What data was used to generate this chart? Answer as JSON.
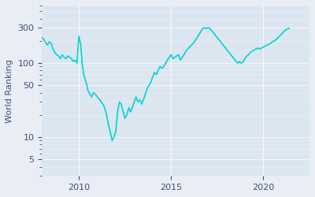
{
  "ylabel": "World Ranking",
  "line_color": "#00d4d4",
  "background_color": "#e8eef4",
  "axes_facecolor": "#dce6f0",
  "yticks": [
    5,
    10,
    50,
    100,
    300
  ],
  "xtick_years": [
    2010,
    2015,
    2020
  ],
  "xlim_start": 2008.0,
  "xlim_end": 2022.5,
  "ylim": [
    3,
    600
  ],
  "data_points": [
    [
      2008.0,
      220
    ],
    [
      2008.1,
      210
    ],
    [
      2008.2,
      190
    ],
    [
      2008.3,
      175
    ],
    [
      2008.4,
      195
    ],
    [
      2008.5,
      185
    ],
    [
      2008.6,
      155
    ],
    [
      2008.7,
      140
    ],
    [
      2008.8,
      130
    ],
    [
      2008.9,
      125
    ],
    [
      2009.0,
      115
    ],
    [
      2009.1,
      130
    ],
    [
      2009.2,
      120
    ],
    [
      2009.3,
      115
    ],
    [
      2009.4,
      125
    ],
    [
      2009.5,
      120
    ],
    [
      2009.6,
      115
    ],
    [
      2009.7,
      105
    ],
    [
      2009.8,
      110
    ],
    [
      2009.9,
      100
    ],
    [
      2010.0,
      230
    ],
    [
      2010.1,
      180
    ],
    [
      2010.2,
      90
    ],
    [
      2010.3,
      65
    ],
    [
      2010.4,
      55
    ],
    [
      2010.5,
      42
    ],
    [
      2010.6,
      38
    ],
    [
      2010.7,
      35
    ],
    [
      2010.8,
      40
    ],
    [
      2010.9,
      38
    ],
    [
      2011.0,
      35
    ],
    [
      2011.1,
      33
    ],
    [
      2011.2,
      30
    ],
    [
      2011.3,
      28
    ],
    [
      2011.4,
      25
    ],
    [
      2011.5,
      20
    ],
    [
      2011.6,
      15
    ],
    [
      2011.7,
      12
    ],
    [
      2011.8,
      9
    ],
    [
      2011.9,
      10
    ],
    [
      2012.0,
      12
    ],
    [
      2012.1,
      22
    ],
    [
      2012.2,
      30
    ],
    [
      2012.3,
      28
    ],
    [
      2012.4,
      22
    ],
    [
      2012.5,
      18
    ],
    [
      2012.6,
      20
    ],
    [
      2012.7,
      25
    ],
    [
      2012.8,
      22
    ],
    [
      2012.9,
      25
    ],
    [
      2013.0,
      30
    ],
    [
      2013.1,
      35
    ],
    [
      2013.2,
      30
    ],
    [
      2013.3,
      32
    ],
    [
      2013.4,
      28
    ],
    [
      2013.5,
      32
    ],
    [
      2013.6,
      38
    ],
    [
      2013.7,
      45
    ],
    [
      2013.8,
      50
    ],
    [
      2013.9,
      55
    ],
    [
      2014.0,
      65
    ],
    [
      2014.1,
      75
    ],
    [
      2014.2,
      70
    ],
    [
      2014.3,
      80
    ],
    [
      2014.4,
      90
    ],
    [
      2014.5,
      85
    ],
    [
      2014.6,
      90
    ],
    [
      2014.7,
      100
    ],
    [
      2014.8,
      110
    ],
    [
      2014.9,
      120
    ],
    [
      2015.0,
      130
    ],
    [
      2015.1,
      115
    ],
    [
      2015.2,
      120
    ],
    [
      2015.3,
      125
    ],
    [
      2015.4,
      130
    ],
    [
      2015.5,
      110
    ],
    [
      2015.6,
      120
    ],
    [
      2015.7,
      130
    ],
    [
      2015.8,
      145
    ],
    [
      2015.9,
      155
    ],
    [
      2016.0,
      165
    ],
    [
      2016.1,
      175
    ],
    [
      2016.2,
      185
    ],
    [
      2016.3,
      200
    ],
    [
      2016.4,
      220
    ],
    [
      2016.5,
      240
    ],
    [
      2016.6,
      265
    ],
    [
      2016.7,
      290
    ],
    [
      2016.8,
      300
    ],
    [
      2016.9,
      295
    ],
    [
      2017.0,
      300
    ],
    [
      2017.1,
      295
    ],
    [
      2018.6,
      100
    ],
    [
      2018.7,
      105
    ],
    [
      2018.8,
      100
    ],
    [
      2018.9,
      105
    ],
    [
      2019.0,
      115
    ],
    [
      2019.1,
      125
    ],
    [
      2019.2,
      130
    ],
    [
      2019.3,
      140
    ],
    [
      2019.4,
      145
    ],
    [
      2019.5,
      150
    ],
    [
      2019.6,
      155
    ],
    [
      2019.7,
      160
    ],
    [
      2019.8,
      155
    ],
    [
      2019.9,
      160
    ],
    [
      2020.0,
      165
    ],
    [
      2020.1,
      170
    ],
    [
      2020.2,
      175
    ],
    [
      2020.3,
      180
    ],
    [
      2020.4,
      185
    ],
    [
      2020.5,
      195
    ],
    [
      2020.6,
      200
    ],
    [
      2020.7,
      210
    ],
    [
      2020.8,
      220
    ],
    [
      2020.9,
      235
    ],
    [
      2021.0,
      250
    ],
    [
      2021.1,
      265
    ],
    [
      2021.2,
      280
    ],
    [
      2021.3,
      290
    ],
    [
      2021.4,
      295
    ]
  ]
}
